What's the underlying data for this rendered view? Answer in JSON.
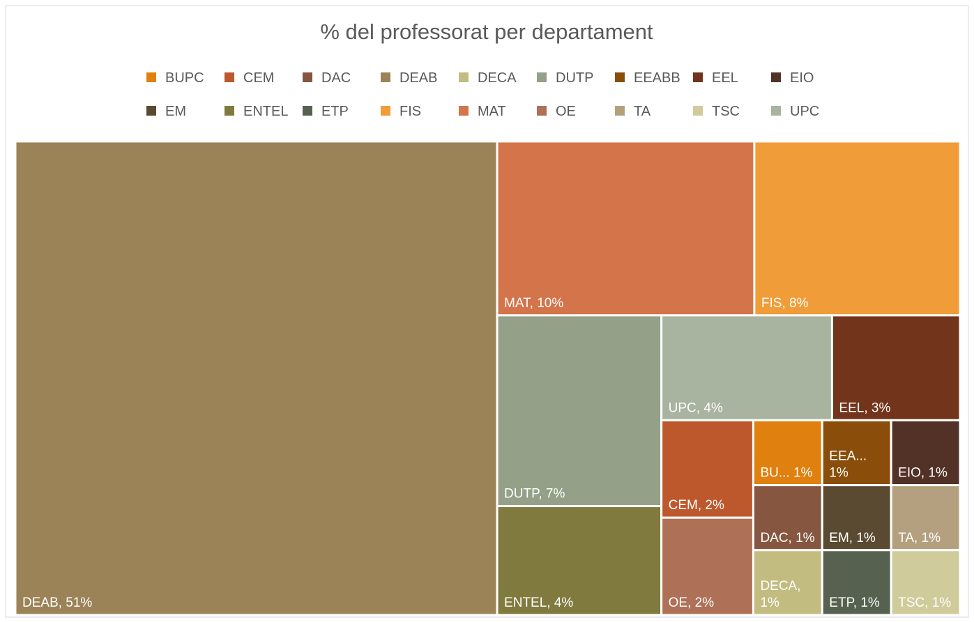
{
  "chart_data": {
    "type": "treemap",
    "title": "% del professorat per departament",
    "categories": [
      "BUPC",
      "CEM",
      "DAC",
      "DEAB",
      "DECA",
      "DUTP",
      "EEABB",
      "EEL",
      "EIO",
      "EM",
      "ENTEL",
      "ETP",
      "FIS",
      "MAT",
      "OE",
      "TA",
      "TSC",
      "UPC"
    ],
    "values": [
      1,
      2,
      1,
      51,
      1,
      7,
      1,
      3,
      1,
      1,
      4,
      1,
      8,
      10,
      2,
      1,
      1,
      4
    ],
    "value_labels": [
      "BU... 1%",
      "CEM, 2%",
      "DAC, 1%",
      "DEAB, 51%",
      "DECA, 1%",
      "DUTP, 7%",
      "EEA... 1%",
      "EEL, 3%",
      "EIO, 1%",
      "EM, 1%",
      "ENTEL, 4%",
      "ETP, 1%",
      "FIS, 8%",
      "MAT, 10%",
      "OE, 2%",
      "TA, 1%",
      "TSC, 1%",
      "UPC, 4%"
    ],
    "colors": [
      "#e0800f",
      "#bd582c",
      "#865640",
      "#9b8357",
      "#c2bc80",
      "#94a088",
      "#8a4e0a",
      "#72341a",
      "#523126",
      "#5a4a32",
      "#807a3e",
      "#566150",
      "#f09c38",
      "#d4744a",
      "#ae7056",
      "#b4a07e",
      "#cfcb9b",
      "#a8b3a0"
    ],
    "legend": "top"
  }
}
